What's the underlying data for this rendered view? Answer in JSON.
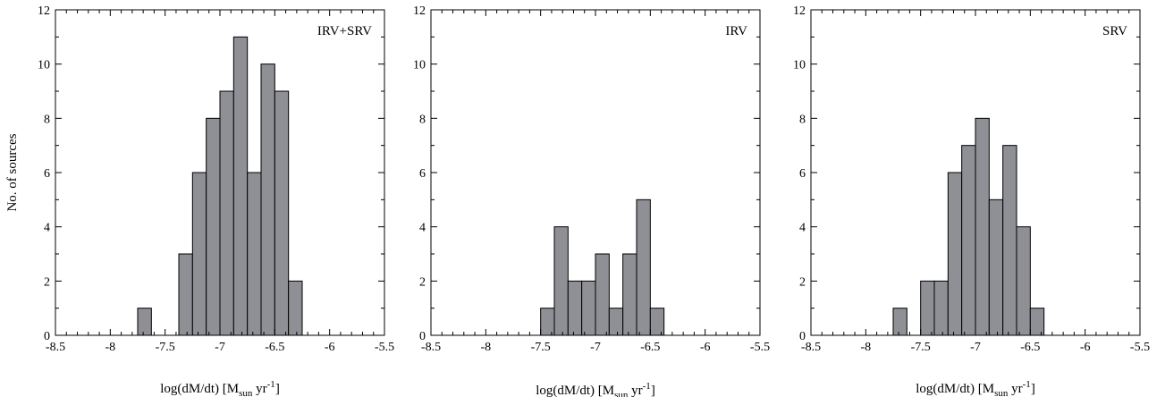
{
  "chart_data": [
    {
      "type": "bar",
      "panel_label": "IRV+SRV",
      "ylabel": "No. of sources",
      "xlabel_parts": [
        "log(dM/dt) [M",
        "sun",
        " yr",
        "-1",
        "]"
      ],
      "xlim": [
        -8.5,
        -5.5
      ],
      "ylim": [
        0,
        12
      ],
      "xticks": [
        "-8.5",
        "-8",
        "-7.5",
        "-7",
        "-6.5",
        "-6",
        "-5.5"
      ],
      "yticks": [
        "0",
        "2",
        "4",
        "6",
        "8",
        "10",
        "12"
      ],
      "bin_width": 0.125,
      "bin_starts": [
        -7.75,
        -7.5,
        -7.375,
        -7.25,
        -7.125,
        -7.0,
        -6.875,
        -6.75,
        -6.625,
        -6.5,
        -6.375,
        -6.25,
        -6.125
      ],
      "values": [
        1,
        0,
        3,
        6,
        8,
        9,
        11,
        6,
        10,
        9,
        2,
        0,
        0
      ]
    },
    {
      "type": "bar",
      "panel_label": "IRV",
      "ylabel": "",
      "xlabel_parts": [
        "log(dM/dt) [M",
        "sun",
        " yr",
        "-1",
        "]"
      ],
      "xlim": [
        -8.5,
        -5.5
      ],
      "ylim": [
        0,
        12
      ],
      "xticks": [
        "-8.5",
        "-8",
        "-7.5",
        "-7",
        "-6.5",
        "-6",
        "-5.5"
      ],
      "yticks": [
        "0",
        "2",
        "4",
        "6",
        "8",
        "10",
        "12"
      ],
      "bin_width": 0.125,
      "bin_starts": [
        -7.5,
        -7.375,
        -7.25,
        -7.125,
        -7.0,
        -6.875,
        -6.75,
        -6.625,
        -6.5,
        -6.375,
        -6.25
      ],
      "values": [
        1,
        4,
        2,
        2,
        3,
        1,
        3,
        5,
        1,
        0,
        0
      ]
    },
    {
      "type": "bar",
      "panel_label": "SRV",
      "ylabel": "",
      "xlabel_parts": [
        "log(dM/dt) [M",
        "sun",
        " yr",
        "-1",
        "]"
      ],
      "xlim": [
        -8.5,
        -5.5
      ],
      "ylim": [
        0,
        12
      ],
      "xticks": [
        "-8.5",
        "-8",
        "-7.5",
        "-7",
        "-6.5",
        "-6",
        "-5.5"
      ],
      "yticks": [
        "0",
        "2",
        "4",
        "6",
        "8",
        "10",
        "12"
      ],
      "bin_width": 0.125,
      "bin_starts": [
        -7.75,
        -7.625,
        -7.5,
        -7.375,
        -7.25,
        -7.125,
        -7.0,
        -6.875,
        -6.75,
        -6.625,
        -6.5,
        -6.375,
        -6.25,
        -6.125
      ],
      "values": [
        1,
        0,
        2,
        2,
        6,
        7,
        8,
        5,
        7,
        4,
        1,
        0,
        0,
        0
      ]
    }
  ]
}
